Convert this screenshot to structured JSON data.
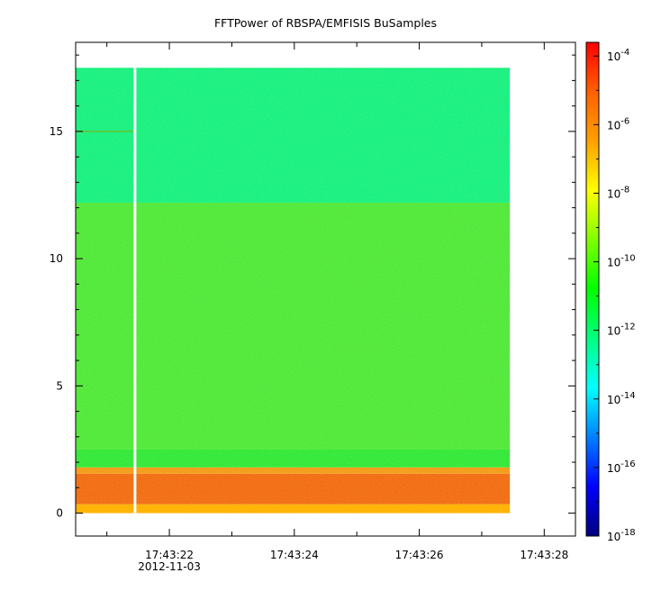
{
  "chart_data": {
    "type": "heatmap",
    "title": "FFTPower of RBSPA/EMFISIS  BuSamples",
    "xlabel": "",
    "ylabel": "",
    "x_tick_labels": [
      "17:43:22",
      "17:43:24",
      "17:43:26",
      "17:43:28"
    ],
    "x_tick_values_seconds": [
      22,
      24,
      26,
      28
    ],
    "x_date_label": "2012-11-03",
    "xlim_seconds": [
      20.5,
      28.5
    ],
    "data_x_range_seconds": [
      20.5,
      27.45
    ],
    "gap_x_seconds": 21.45,
    "y_tick_values": [
      0,
      5,
      10,
      15
    ],
    "ylim": [
      -0.9,
      18.5
    ],
    "data_y_range": [
      0,
      17.5
    ],
    "colorbar": {
      "scale": "log",
      "range": [
        -18,
        -3.6
      ],
      "tick_exponents": [
        -4,
        -6,
        -8,
        -10,
        -12,
        -14,
        -16,
        -18
      ],
      "tick_base": "10",
      "colormap": [
        "#00007f",
        "#0000ff",
        "#0080ff",
        "#00ffff",
        "#00ff80",
        "#00ff00",
        "#80ff00",
        "#ffff00",
        "#ffa000",
        "#ff6000",
        "#ff0000"
      ]
    },
    "bands": [
      {
        "y_from": 0.0,
        "y_to": 0.35,
        "log_power": -7.8,
        "color": "#ffb000"
      },
      {
        "y_from": 0.35,
        "y_to": 1.55,
        "log_power": -6.6,
        "color": "#f26a12"
      },
      {
        "y_from": 1.55,
        "y_to": 1.8,
        "log_power": -7.2,
        "color": "#f49a18"
      },
      {
        "y_from": 1.8,
        "y_to": 2.5,
        "log_power": -10.0,
        "color": "#2ee838"
      },
      {
        "y_from": 2.5,
        "y_to": 12.2,
        "log_power": -9.7,
        "color": "#4de83a"
      },
      {
        "y_from": 12.2,
        "y_to": 17.5,
        "log_power": -11.8,
        "color": "#14f082"
      }
    ],
    "line_feature": {
      "y": 15.0,
      "x_to_seconds": 21.45,
      "color": "#55cc44"
    }
  }
}
